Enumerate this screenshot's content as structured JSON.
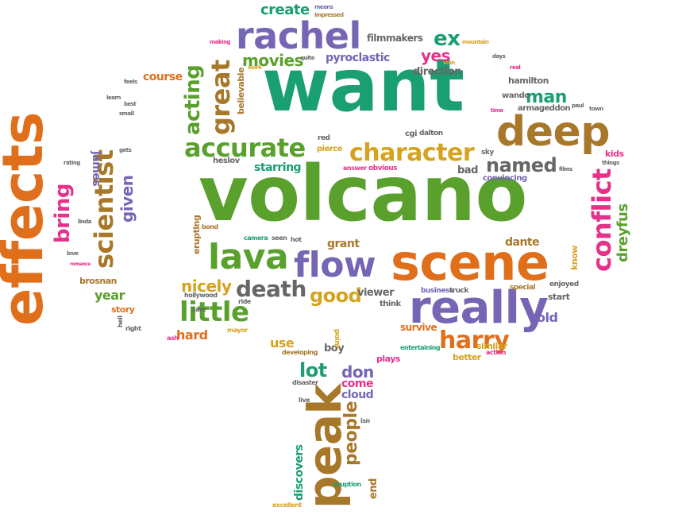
{
  "colors": {
    "green": "#5aa02c",
    "teal": "#1a9e73",
    "purple": "#7565b4",
    "orange": "#e06f1c",
    "brown": "#a8782a",
    "pink": "#e5318a",
    "gray": "#666666",
    "gold": "#d6a321"
  },
  "words": {
    "volcano": "volcano",
    "want": "want",
    "effects": "effects",
    "scene": "scene",
    "really": "really",
    "peak": "peak",
    "deep": "deep",
    "rachel": "rachel",
    "flow": "flow",
    "lava": "lava",
    "character": "character",
    "accurate": "accurate",
    "scientist": "scientist",
    "conflict": "conflict",
    "great": "great",
    "little": "little",
    "death": "death",
    "harry": "harry",
    "acting": "acting",
    "named": "named",
    "good": "good",
    "bring": "bring",
    "ex": "ex",
    "yes": "yes",
    "movies": "movies",
    "lot": "lot",
    "don": "don",
    "people": "people",
    "create": "create",
    "man": "man",
    "nicely": "nicely",
    "given": "given",
    "dreyfus": "dreyfus",
    "starring": "starring",
    "hard": "hard",
    "year": "year",
    "use": "use",
    "pyroclastic": "pyroclastic",
    "discovers": "discovers",
    "dante": "dante",
    "course": "course",
    "old": "old",
    "cloud": "cloud",
    "come": "come",
    "james": "james",
    "grant": "grant",
    "direction": "direction",
    "viewer": "viewer",
    "boy": "boy",
    "bad": "bad",
    "survive": "survive",
    "filmmakers": "filmmakers",
    "believable": "believable",
    "erupting": "erupting",
    "end": "end",
    "brosnan": "brosnan",
    "know": "know",
    "hamilton": "hamilton",
    "armageddon": "armageddon",
    "wando": "wando",
    "heslov": "heslov",
    "pierce": "pierce",
    "convincing": "convincing",
    "similar": "similar",
    "better": "better",
    "plays": "plays",
    "think": "think",
    "kids": "kids",
    "start": "start",
    "business": "business",
    "cgi": "cgi",
    "dalton": "dalton",
    "red": "red",
    "answer": "answer",
    "obvious": "obvious",
    "sky": "sky",
    "enjoyed": "enjoyed",
    "special": "special",
    "truck": "truck",
    "camera": "camera",
    "seen": "seen",
    "hot": "hot",
    "bond": "bond",
    "story": "story",
    "right": "right",
    "hell": "hell",
    "care": "care",
    "hollywood": "hollywood",
    "ride": "ride",
    "mayor": "mayor",
    "ash": "ash",
    "point": "point",
    "developing": "developing",
    "entertaining": "entertaining",
    "action": "action",
    "disaster": "disaster",
    "live": "live",
    "isn": "isn",
    "eruption": "eruption",
    "excellent": "excellent",
    "means": "means",
    "impressed": "impressed",
    "making": "making",
    "quite": "quite",
    "work": "work",
    "won": "won",
    "days": "days",
    "real": "real",
    "mountain": "mountain",
    "feels": "feels",
    "learn": "learn",
    "small": "small",
    "best": "best",
    "gets": "gets",
    "rating": "rating",
    "linda": "linda",
    "love": "love",
    "romance": "romance",
    "films": "films",
    "things": "things",
    "town": "town",
    "paul": "paul",
    "time": "time"
  }
}
